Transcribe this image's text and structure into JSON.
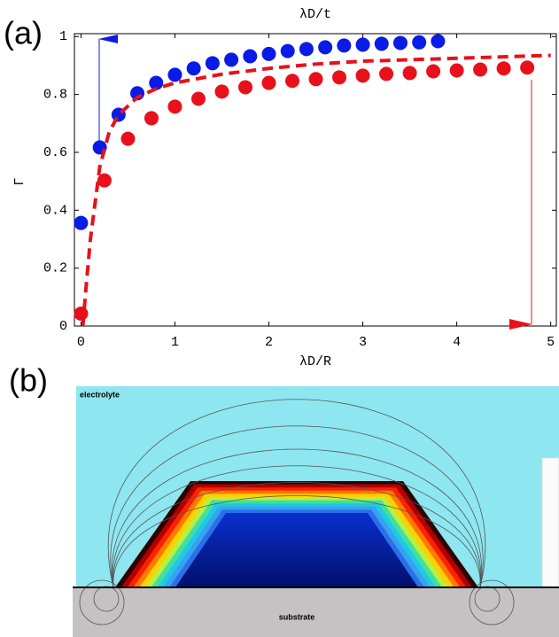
{
  "panel_labels": [
    "(a)",
    "(b)"
  ],
  "chart_data": {
    "type": "scatter",
    "x_label": "λD/R",
    "x2_label": "λD/t",
    "y_label": "Γ",
    "xlim": [
      -0.07,
      5.06
    ],
    "ylim": [
      0,
      1.01
    ],
    "xticks": [
      0,
      1,
      2,
      3,
      4,
      5
    ],
    "yticks": [
      0,
      0.2,
      0.4,
      0.6,
      0.8,
      1
    ],
    "series": [
      {
        "type": "scatter",
        "color": "#0a1be6",
        "x": [
          0,
          0.2,
          0.4,
          0.6,
          0.8,
          1.0,
          1.2,
          1.4,
          1.6,
          1.8,
          2.0,
          2.2,
          2.4,
          2.6,
          2.8,
          3.0,
          3.2,
          3.4,
          3.6,
          3.8
        ],
        "values": [
          0.356,
          0.617,
          0.73,
          0.804,
          0.84,
          0.868,
          0.89,
          0.908,
          0.92,
          0.932,
          0.94,
          0.95,
          0.957,
          0.963,
          0.969,
          0.972,
          0.975,
          0.978,
          0.98,
          0.984
        ]
      },
      {
        "type": "scatter",
        "color": "#e8111b",
        "x": [
          0,
          0.25,
          0.5,
          0.75,
          1.0,
          1.25,
          1.5,
          1.75,
          2.0,
          2.25,
          2.5,
          2.75,
          3.0,
          3.25,
          3.5,
          3.75,
          4.0,
          4.25,
          4.5,
          4.75
        ],
        "values": [
          0.043,
          0.503,
          0.647,
          0.718,
          0.758,
          0.785,
          0.81,
          0.825,
          0.84,
          0.847,
          0.853,
          0.859,
          0.865,
          0.871,
          0.874,
          0.88,
          0.883,
          0.886,
          0.89,
          0.893
        ]
      },
      {
        "type": "line",
        "dash": true,
        "color": "#e8111b",
        "x": [
          0.02,
          0.05,
          0.1,
          0.2,
          0.3,
          0.4,
          0.6,
          0.8,
          1,
          1.5,
          2,
          2.5,
          3,
          3.5,
          4,
          4.5,
          5
        ],
        "values": [
          0,
          0.12,
          0.3,
          0.55,
          0.67,
          0.73,
          0.79,
          0.82,
          0.84,
          0.87,
          0.89,
          0.905,
          0.915,
          0.92,
          0.925,
          0.93,
          0.935
        ]
      }
    ]
  },
  "simulation": {
    "labels": [
      "electrolyte",
      "substrate"
    ]
  }
}
